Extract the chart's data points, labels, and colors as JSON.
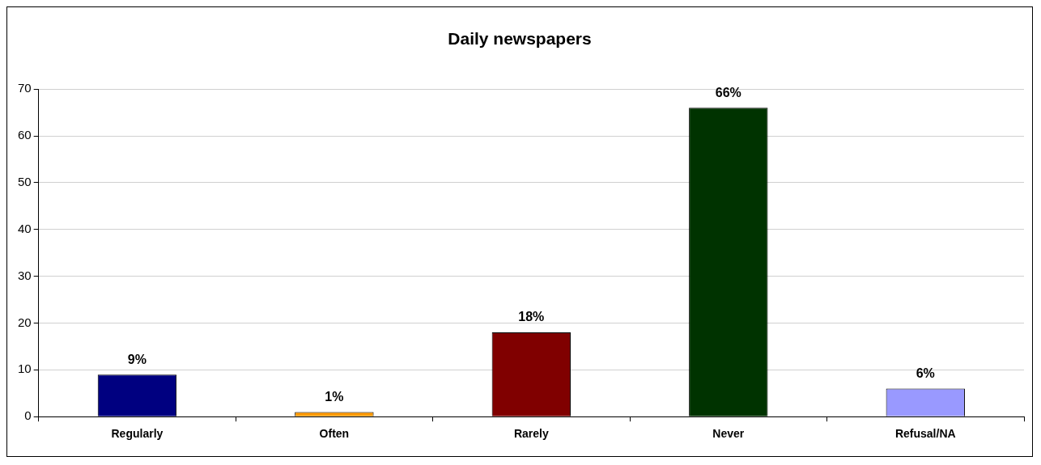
{
  "chart_data": {
    "type": "bar",
    "title": "Daily newspapers",
    "categories": [
      "Regularly",
      "Often",
      "Rarely",
      "Never",
      "Refusal/NA"
    ],
    "values": [
      9,
      1,
      18,
      66,
      6
    ],
    "colors": [
      "#000080",
      "#ff9900",
      "#800000",
      "#003300",
      "#9999ff"
    ],
    "value_labels": [
      "9%",
      "1%",
      "18%",
      "66%",
      "6%"
    ],
    "ylim": [
      0,
      70
    ],
    "yticks": [
      0,
      10,
      20,
      30,
      40,
      50,
      60,
      70
    ],
    "grid": "y",
    "legend": false
  }
}
